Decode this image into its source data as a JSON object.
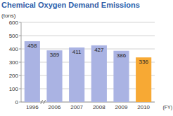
{
  "chart_data": {
    "type": "bar",
    "title": "Chemical Oxygen Demand Emissions",
    "y_label": "(tons)",
    "x_label": "(FY)",
    "categories": [
      "1996",
      "2006",
      "2007",
      "2008",
      "2009",
      "2010"
    ],
    "values": [
      458,
      389,
      411,
      427,
      386,
      336
    ],
    "colors": [
      "#aab3e3",
      "#aab3e3",
      "#aab3e3",
      "#aab3e3",
      "#aab3e3",
      "#f7a934"
    ],
    "ylim": [
      0,
      600
    ],
    "yticks": [
      0,
      100,
      200,
      300,
      400,
      500,
      600
    ],
    "grid": true,
    "data_labels": true
  }
}
